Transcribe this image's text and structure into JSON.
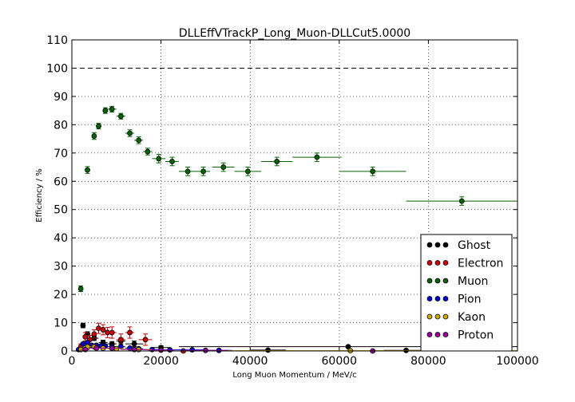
{
  "chart_data": {
    "type": "scatter",
    "title": "DLLEffVTrackP_Long_Muon-DLLCut5.0000",
    "xlabel": "Long Muon Momentum / MeV/c",
    "ylabel": "Efficiency / %",
    "xlim": [
      0,
      100000
    ],
    "ylim": [
      0,
      110
    ],
    "xticks": [
      0,
      20000,
      40000,
      60000,
      80000,
      100000
    ],
    "yticks": [
      0,
      10,
      20,
      30,
      40,
      50,
      60,
      70,
      80,
      90,
      100,
      110
    ],
    "grid": true,
    "reference_line": 100,
    "legend_position": "lower-right",
    "series": [
      {
        "name": "Ghost",
        "color": "#000000",
        "points": [
          {
            "x": 2500,
            "xerr": 500,
            "y": 9.0,
            "yerr": 0.8
          },
          {
            "x": 3500,
            "xerr": 500,
            "y": 6.0,
            "yerr": 0.8
          },
          {
            "x": 5000,
            "xerr": 1000,
            "y": 4.5,
            "yerr": 0.8
          },
          {
            "x": 7000,
            "xerr": 1000,
            "y": 3.0,
            "yerr": 0.8
          },
          {
            "x": 9000,
            "xerr": 1000,
            "y": 2.5,
            "yerr": 0.8
          },
          {
            "x": 11000,
            "xerr": 1000,
            "y": 3.5,
            "yerr": 1.0
          },
          {
            "x": 14000,
            "xerr": 2000,
            "y": 2.5,
            "yerr": 1.0
          },
          {
            "x": 20000,
            "xerr": 2000,
            "y": 1.2,
            "yerr": 0.6
          },
          {
            "x": 44000,
            "xerr": 4000,
            "y": 0.3,
            "yerr": 0.3
          },
          {
            "x": 62000,
            "xerr": 38000,
            "y": 1.5,
            "yerr": 0.4
          },
          {
            "x": 75000,
            "xerr": 5000,
            "y": 0.2,
            "yerr": 0.2
          }
        ]
      },
      {
        "name": "Electron",
        "color": "#cc0000",
        "points": [
          {
            "x": 2000,
            "xerr": 500,
            "y": 1.5,
            "yerr": 1.0
          },
          {
            "x": 3000,
            "xerr": 500,
            "y": 5.0,
            "yerr": 1.5
          },
          {
            "x": 4000,
            "xerr": 500,
            "y": 4.0,
            "yerr": 1.5
          },
          {
            "x": 5000,
            "xerr": 500,
            "y": 6.0,
            "yerr": 1.5
          },
          {
            "x": 6000,
            "xerr": 500,
            "y": 8.0,
            "yerr": 1.8
          },
          {
            "x": 7000,
            "xerr": 500,
            "y": 7.5,
            "yerr": 1.8
          },
          {
            "x": 8000,
            "xerr": 500,
            "y": 6.5,
            "yerr": 1.8
          },
          {
            "x": 9000,
            "xerr": 1000,
            "y": 6.5,
            "yerr": 2.0
          },
          {
            "x": 11000,
            "xerr": 1000,
            "y": 4.0,
            "yerr": 2.0
          },
          {
            "x": 13000,
            "xerr": 1000,
            "y": 6.5,
            "yerr": 2.0
          },
          {
            "x": 16500,
            "xerr": 1500,
            "y": 4.0,
            "yerr": 2.0
          },
          {
            "x": 25000,
            "xerr": 2500,
            "y": 0.0,
            "yerr": 0.3
          }
        ]
      },
      {
        "name": "Muon",
        "color": "#006400",
        "points": [
          {
            "x": 2000,
            "xerr": 500,
            "y": 22.0,
            "yerr": 1.0
          },
          {
            "x": 3500,
            "xerr": 500,
            "y": 64.0,
            "yerr": 1.2
          },
          {
            "x": 5000,
            "xerr": 500,
            "y": 76.0,
            "yerr": 1.2
          },
          {
            "x": 6000,
            "xerr": 500,
            "y": 79.5,
            "yerr": 1.0
          },
          {
            "x": 7500,
            "xerr": 500,
            "y": 85.0,
            "yerr": 1.0
          },
          {
            "x": 9000,
            "xerr": 1000,
            "y": 85.5,
            "yerr": 1.0
          },
          {
            "x": 11000,
            "xerr": 1000,
            "y": 83.0,
            "yerr": 1.0
          },
          {
            "x": 13000,
            "xerr": 1000,
            "y": 77.0,
            "yerr": 1.2
          },
          {
            "x": 15000,
            "xerr": 1000,
            "y": 74.5,
            "yerr": 1.2
          },
          {
            "x": 17000,
            "xerr": 1000,
            "y": 70.5,
            "yerr": 1.2
          },
          {
            "x": 19500,
            "xerr": 1500,
            "y": 68.0,
            "yerr": 1.5
          },
          {
            "x": 22500,
            "xerr": 1500,
            "y": 67.0,
            "yerr": 1.5
          },
          {
            "x": 26000,
            "xerr": 2000,
            "y": 63.5,
            "yerr": 1.5
          },
          {
            "x": 29500,
            "xerr": 1500,
            "y": 63.5,
            "yerr": 1.5
          },
          {
            "x": 34000,
            "xerr": 2500,
            "y": 65.0,
            "yerr": 1.5
          },
          {
            "x": 39500,
            "xerr": 3000,
            "y": 63.5,
            "yerr": 1.5
          },
          {
            "x": 46000,
            "xerr": 3500,
            "y": 67.0,
            "yerr": 1.5
          },
          {
            "x": 55000,
            "xerr": 5500,
            "y": 68.5,
            "yerr": 1.5
          },
          {
            "x": 67500,
            "xerr": 7500,
            "y": 63.5,
            "yerr": 1.5
          },
          {
            "x": 87500,
            "xerr": 12500,
            "y": 53.0,
            "yerr": 1.5
          }
        ]
      },
      {
        "name": "Pion",
        "color": "#0000cc",
        "points": [
          {
            "x": 1500,
            "xerr": 500,
            "y": 0.5,
            "yerr": 0.3
          },
          {
            "x": 2500,
            "xerr": 500,
            "y": 2.5,
            "yerr": 0.4
          },
          {
            "x": 3500,
            "xerr": 500,
            "y": 3.0,
            "yerr": 0.4
          },
          {
            "x": 4500,
            "xerr": 500,
            "y": 2.0,
            "yerr": 0.4
          },
          {
            "x": 5500,
            "xerr": 500,
            "y": 2.0,
            "yerr": 0.3
          },
          {
            "x": 6500,
            "xerr": 500,
            "y": 1.8,
            "yerr": 0.3
          },
          {
            "x": 7500,
            "xerr": 500,
            "y": 1.8,
            "yerr": 0.3
          },
          {
            "x": 9000,
            "xerr": 1000,
            "y": 1.5,
            "yerr": 0.3
          },
          {
            "x": 11000,
            "xerr": 1000,
            "y": 1.5,
            "yerr": 0.3
          },
          {
            "x": 13000,
            "xerr": 1000,
            "y": 1.0,
            "yerr": 0.3
          },
          {
            "x": 15000,
            "xerr": 1000,
            "y": 0.8,
            "yerr": 0.3
          },
          {
            "x": 18000,
            "xerr": 2000,
            "y": 0.5,
            "yerr": 0.2
          },
          {
            "x": 22000,
            "xerr": 2000,
            "y": 0.4,
            "yerr": 0.2
          },
          {
            "x": 27000,
            "xerr": 3000,
            "y": 0.4,
            "yerr": 0.2
          },
          {
            "x": 33000,
            "xerr": 3000,
            "y": 0.2,
            "yerr": 0.2
          }
        ]
      },
      {
        "name": "Kaon",
        "color": "#ccaa00",
        "points": [
          {
            "x": 2000,
            "xerr": 500,
            "y": 0.5,
            "yerr": 0.5
          },
          {
            "x": 3500,
            "xerr": 500,
            "y": 1.5,
            "yerr": 0.6
          },
          {
            "x": 5000,
            "xerr": 1000,
            "y": 1.5,
            "yerr": 0.6
          },
          {
            "x": 7000,
            "xerr": 1000,
            "y": 1.0,
            "yerr": 0.5
          },
          {
            "x": 10000,
            "xerr": 2000,
            "y": 0.8,
            "yerr": 0.5
          },
          {
            "x": 15000,
            "xerr": 3000,
            "y": 0.5,
            "yerr": 0.4
          },
          {
            "x": 62500,
            "xerr": 37500,
            "y": 0.1,
            "yerr": 0.1
          }
        ]
      },
      {
        "name": "Proton",
        "color": "#990099",
        "points": [
          {
            "x": 3000,
            "xerr": 1000,
            "y": 0.5,
            "yerr": 0.5
          },
          {
            "x": 5500,
            "xerr": 1500,
            "y": 1.0,
            "yerr": 0.5
          },
          {
            "x": 9000,
            "xerr": 2000,
            "y": 1.0,
            "yerr": 0.5
          },
          {
            "x": 14000,
            "xerr": 3000,
            "y": 0.5,
            "yerr": 0.4
          },
          {
            "x": 20000,
            "xerr": 3000,
            "y": 0.3,
            "yerr": 0.3
          },
          {
            "x": 30000,
            "xerr": 5000,
            "y": 0.2,
            "yerr": 0.2
          },
          {
            "x": 67500,
            "xerr": 2500,
            "y": 0.0,
            "yerr": 0.1
          }
        ]
      }
    ]
  }
}
